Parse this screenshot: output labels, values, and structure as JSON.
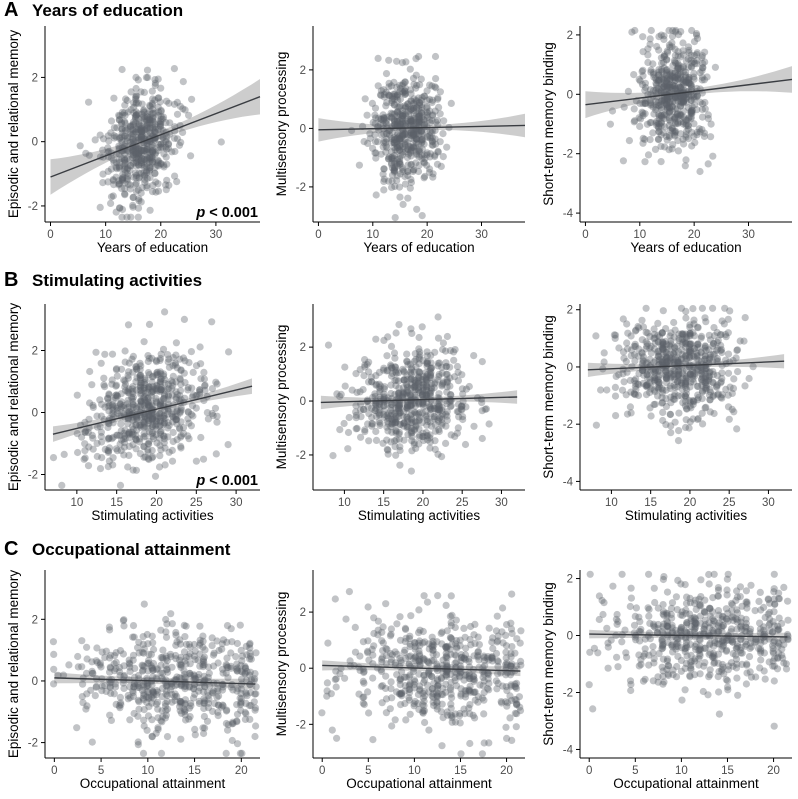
{
  "colors": {
    "point": "#5d6168",
    "line": "#3a3d42",
    "band": "#bcbcbc",
    "axis": "#000000"
  },
  "rows": [
    {
      "letter": "A",
      "title": "Years of education"
    },
    {
      "letter": "B",
      "title": "Stimulating activities"
    },
    {
      "letter": "C",
      "title": "Occupational attainment"
    }
  ],
  "chart_data": [
    {
      "type": "scatter",
      "row": 0,
      "col": 0,
      "xlabel": "Years of education",
      "ylabel": "Episodic and relational memory",
      "xlim": [
        -1,
        38
      ],
      "ylim": [
        -2.5,
        3.6
      ],
      "xticks": [
        0,
        10,
        20,
        30
      ],
      "yticks": [
        -2,
        0,
        2
      ],
      "xcenter": 16,
      "xspread": 3.2,
      "xmin": 0,
      "xmax": 38,
      "n": 520,
      "ysd": 0.9,
      "fit": {
        "x": [
          0,
          38
        ],
        "y": [
          -1.1,
          1.4
        ]
      },
      "band": [
        0.12,
        0.55
      ],
      "annotation": "p < 0.001"
    },
    {
      "type": "scatter",
      "row": 0,
      "col": 1,
      "xlabel": "Years of education",
      "ylabel": "Multisensory processing",
      "xlim": [
        -1,
        38
      ],
      "ylim": [
        -3.2,
        3.5
      ],
      "xticks": [
        0,
        10,
        20,
        30
      ],
      "yticks": [
        -2,
        0,
        2
      ],
      "xcenter": 16,
      "xspread": 3.2,
      "xmin": 0,
      "xmax": 38,
      "n": 520,
      "ysd": 0.95,
      "fit": {
        "x": [
          0,
          38
        ],
        "y": [
          -0.05,
          0.1
        ]
      },
      "band": [
        0.08,
        0.4
      ]
    },
    {
      "type": "scatter",
      "row": 0,
      "col": 2,
      "xlabel": "Years of education",
      "ylabel": "Short-term memory binding",
      "xlim": [
        -1,
        38
      ],
      "ylim": [
        -4.3,
        2.3
      ],
      "xticks": [
        0,
        10,
        20,
        30
      ],
      "yticks": [
        -4,
        -2,
        0,
        2
      ],
      "xcenter": 16,
      "xspread": 3.2,
      "xmin": 0,
      "xmax": 38,
      "n": 520,
      "ysd": 0.95,
      "fit": {
        "x": [
          0,
          38
        ],
        "y": [
          -0.35,
          0.5
        ]
      },
      "band": [
        0.1,
        0.45
      ]
    },
    {
      "type": "scatter",
      "row": 1,
      "col": 0,
      "xlabel": "Stimulating activities",
      "ylabel": "Episodic and relational memory",
      "xlim": [
        6,
        33
      ],
      "ylim": [
        -2.5,
        3.5
      ],
      "xticks": [
        10,
        15,
        20,
        25,
        30
      ],
      "yticks": [
        -2,
        0,
        2
      ],
      "xcenter": 18.5,
      "xspread": 3.8,
      "xmin": 7,
      "xmax": 32,
      "n": 600,
      "ysd": 0.9,
      "fit": {
        "x": [
          7,
          32
        ],
        "y": [
          -0.7,
          0.85
        ]
      },
      "band": [
        0.08,
        0.25
      ],
      "annotation": "p < 0.001"
    },
    {
      "type": "scatter",
      "row": 1,
      "col": 1,
      "xlabel": "Stimulating activities",
      "ylabel": "Multisensory processing",
      "xlim": [
        6,
        33
      ],
      "ylim": [
        -3.3,
        3.6
      ],
      "xticks": [
        10,
        15,
        20,
        25,
        30
      ],
      "yticks": [
        -2,
        0,
        2
      ],
      "xcenter": 18.5,
      "xspread": 3.8,
      "xmin": 7,
      "xmax": 32,
      "n": 600,
      "ysd": 0.95,
      "fit": {
        "x": [
          7,
          32
        ],
        "y": [
          -0.05,
          0.15
        ]
      },
      "band": [
        0.08,
        0.25
      ]
    },
    {
      "type": "scatter",
      "row": 1,
      "col": 2,
      "xlabel": "Stimulating activities",
      "ylabel": "Short-term memory binding",
      "xlim": [
        6,
        33
      ],
      "ylim": [
        -4.3,
        2.2
      ],
      "xticks": [
        10,
        15,
        20,
        25,
        30
      ],
      "yticks": [
        -4,
        -2,
        0,
        2
      ],
      "xcenter": 18.5,
      "xspread": 3.8,
      "xmin": 7,
      "xmax": 32,
      "n": 600,
      "ysd": 0.9,
      "fit": {
        "x": [
          7,
          32
        ],
        "y": [
          -0.1,
          0.2
        ]
      },
      "band": [
        0.08,
        0.25
      ]
    },
    {
      "type": "scatter",
      "row": 2,
      "col": 0,
      "xlabel": "Occupational attainment",
      "ylabel": "Episodic and relational memory",
      "xlim": [
        -1,
        22
      ],
      "ylim": [
        -2.5,
        3.6
      ],
      "xticks": [
        0,
        5,
        10,
        15,
        20
      ],
      "yticks": [
        -2,
        0,
        2
      ],
      "xcenter": 13,
      "xspread": 5.5,
      "xmin": 0,
      "xmax": 21.5,
      "n": 560,
      "ysd": 0.9,
      "fit": {
        "x": [
          0,
          21.5
        ],
        "y": [
          0.1,
          -0.1
        ]
      },
      "band": [
        0.1,
        0.18
      ]
    },
    {
      "type": "scatter",
      "row": 2,
      "col": 1,
      "xlabel": "Occupational attainment",
      "ylabel": "Multisensory processing",
      "xlim": [
        -1,
        22
      ],
      "ylim": [
        -3.2,
        3.5
      ],
      "xticks": [
        0,
        5,
        10,
        15,
        20
      ],
      "yticks": [
        -2,
        0,
        2
      ],
      "xcenter": 13,
      "xspread": 5.5,
      "xmin": 0,
      "xmax": 21.5,
      "n": 560,
      "ysd": 0.95,
      "fit": {
        "x": [
          0,
          21.5
        ],
        "y": [
          0.1,
          -0.1
        ]
      },
      "band": [
        0.1,
        0.18
      ]
    },
    {
      "type": "scatter",
      "row": 2,
      "col": 2,
      "xlabel": "Occupational attainment",
      "ylabel": "Short-term memory binding",
      "xlim": [
        -1,
        22
      ],
      "ylim": [
        -4.3,
        2.3
      ],
      "xticks": [
        0,
        5,
        10,
        15,
        20
      ],
      "yticks": [
        -4,
        -2,
        0,
        2
      ],
      "xcenter": 13,
      "xspread": 5.5,
      "xmin": 0,
      "xmax": 21.5,
      "n": 560,
      "ysd": 0.9,
      "fit": {
        "x": [
          0,
          21.5
        ],
        "y": [
          0.05,
          -0.05
        ]
      },
      "band": [
        0.1,
        0.15
      ]
    }
  ]
}
